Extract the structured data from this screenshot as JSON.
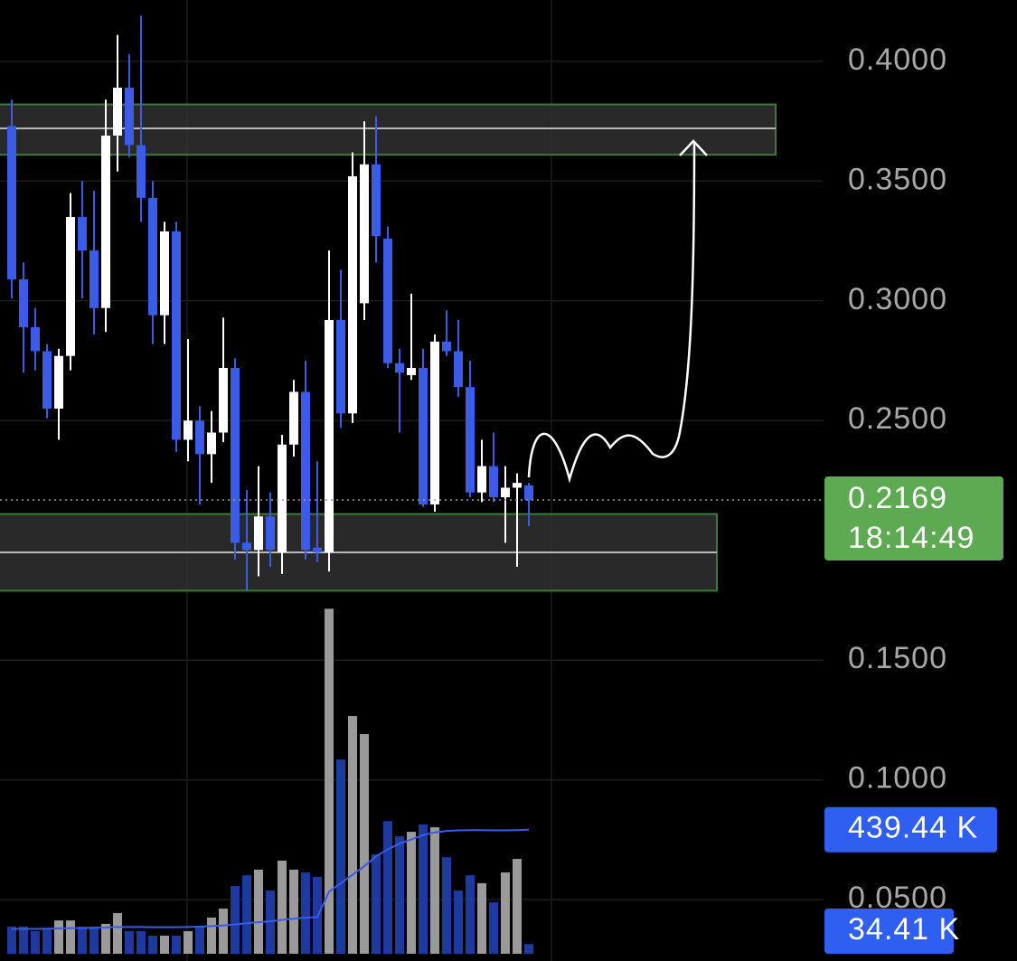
{
  "chart_data": {
    "type": "candlestick",
    "ylim": [
      0.0244,
      0.4256
    ],
    "yticks": [
      {
        "value": 0.4,
        "label": "0.4000"
      },
      {
        "value": 0.35,
        "label": "0.3500"
      },
      {
        "value": 0.3,
        "label": "0.3000"
      },
      {
        "value": 0.25,
        "label": "0.2500"
      },
      {
        "value": 0.15,
        "label": "0.1500"
      },
      {
        "value": 0.1,
        "label": "0.1000"
      },
      {
        "value": 0.05,
        "label": "0.0500"
      }
    ],
    "grid": true,
    "up_color": "#ffffff",
    "down_color": "#3a5ce6",
    "open": [
      0.373,
      0.309,
      0.289,
      0.279,
      0.255,
      0.277,
      0.335,
      0.321,
      0.297,
      0.369,
      0.389,
      0.365,
      0.343,
      0.294,
      0.329,
      0.242,
      0.25,
      0.236,
      0.245,
      0.272,
      0.199,
      0.196,
      0.21,
      0.195,
      0.24,
      0.262,
      0.197,
      0.195,
      0.292,
      0.253,
      0.299,
      0.357,
      0.326,
      0.274,
      0.269,
      0.272,
      0.215,
      0.283,
      0.279,
      0.264,
      0.22,
      0.231,
      0.218,
      0.222,
      0.223
    ],
    "high": [
      0.384,
      0.316,
      0.297,
      0.282,
      0.28,
      0.345,
      0.35,
      0.346,
      0.384,
      0.411,
      0.403,
      0.419,
      0.35,
      0.333,
      0.333,
      0.284,
      0.256,
      0.254,
      0.293,
      0.276,
      0.221,
      0.231,
      0.22,
      0.244,
      0.267,
      0.275,
      0.233,
      0.321,
      0.313,
      0.362,
      0.375,
      0.377,
      0.331,
      0.28,
      0.303,
      0.28,
      0.286,
      0.296,
      0.292,
      0.275,
      0.242,
      0.245,
      0.231,
      0.228,
      0.224
    ],
    "low": [
      0.301,
      0.27,
      0.271,
      0.251,
      0.242,
      0.271,
      0.301,
      0.286,
      0.287,
      0.354,
      0.36,
      0.333,
      0.282,
      0.282,
      0.237,
      0.233,
      0.215,
      0.224,
      0.241,
      0.192,
      0.179,
      0.185,
      0.189,
      0.186,
      0.235,
      0.192,
      0.191,
      0.187,
      0.247,
      0.249,
      0.292,
      0.316,
      0.272,
      0.245,
      0.267,
      0.214,
      0.212,
      0.277,
      0.26,
      0.218,
      0.216,
      0.216,
      0.199,
      0.189,
      0.206
    ],
    "close": [
      0.309,
      0.289,
      0.279,
      0.255,
      0.277,
      0.335,
      0.321,
      0.297,
      0.369,
      0.389,
      0.365,
      0.343,
      0.294,
      0.329,
      0.242,
      0.25,
      0.236,
      0.245,
      0.272,
      0.199,
      0.196,
      0.21,
      0.196,
      0.24,
      0.262,
      0.196,
      0.195,
      0.292,
      0.253,
      0.352,
      0.357,
      0.327,
      0.274,
      0.27,
      0.272,
      0.215,
      0.283,
      0.279,
      0.264,
      0.22,
      0.231,
      0.218,
      0.222,
      0.224,
      0.2169
    ],
    "last_price": 0.2169,
    "countdown": "18:14:49",
    "zones": [
      {
        "top": 0.382,
        "bottom": 0.361,
        "level": 0.372
      },
      {
        "top": 0.211,
        "bottom": 0.179,
        "level": 0.195
      }
    ],
    "volume": {
      "ylim": [
        0,
        1300
      ],
      "up_color": "#9a9a9a",
      "down_color": "#1f3a9e",
      "ma_color": "#3a5ce6",
      "values": [
        96,
        96,
        80,
        86,
        118,
        118,
        96,
        96,
        106,
        144,
        80,
        80,
        64,
        64,
        64,
        80,
        96,
        128,
        160,
        240,
        278,
        298,
        224,
        330,
        298,
        288,
        272,
        1222,
        688,
        842,
        778,
        352,
        470,
        416,
        432,
        458,
        448,
        342,
        224,
        278,
        250,
        182,
        288,
        336,
        34.41
      ],
      "ma": [
        88,
        88,
        88,
        89,
        90,
        91,
        91,
        92,
        93,
        95,
        95,
        95,
        94,
        94,
        94,
        95,
        96,
        98,
        100,
        104,
        108,
        112,
        115,
        120,
        124,
        128,
        130,
        220,
        250,
        280,
        310,
        345,
        370,
        390,
        405,
        420,
        430,
        435,
        437,
        438,
        438,
        437,
        437,
        438,
        439.44
      ],
      "badges": [
        {
          "value": 439.44,
          "label": "439.44 K"
        },
        {
          "value": 34.41,
          "label": "34.41 K"
        }
      ]
    }
  }
}
